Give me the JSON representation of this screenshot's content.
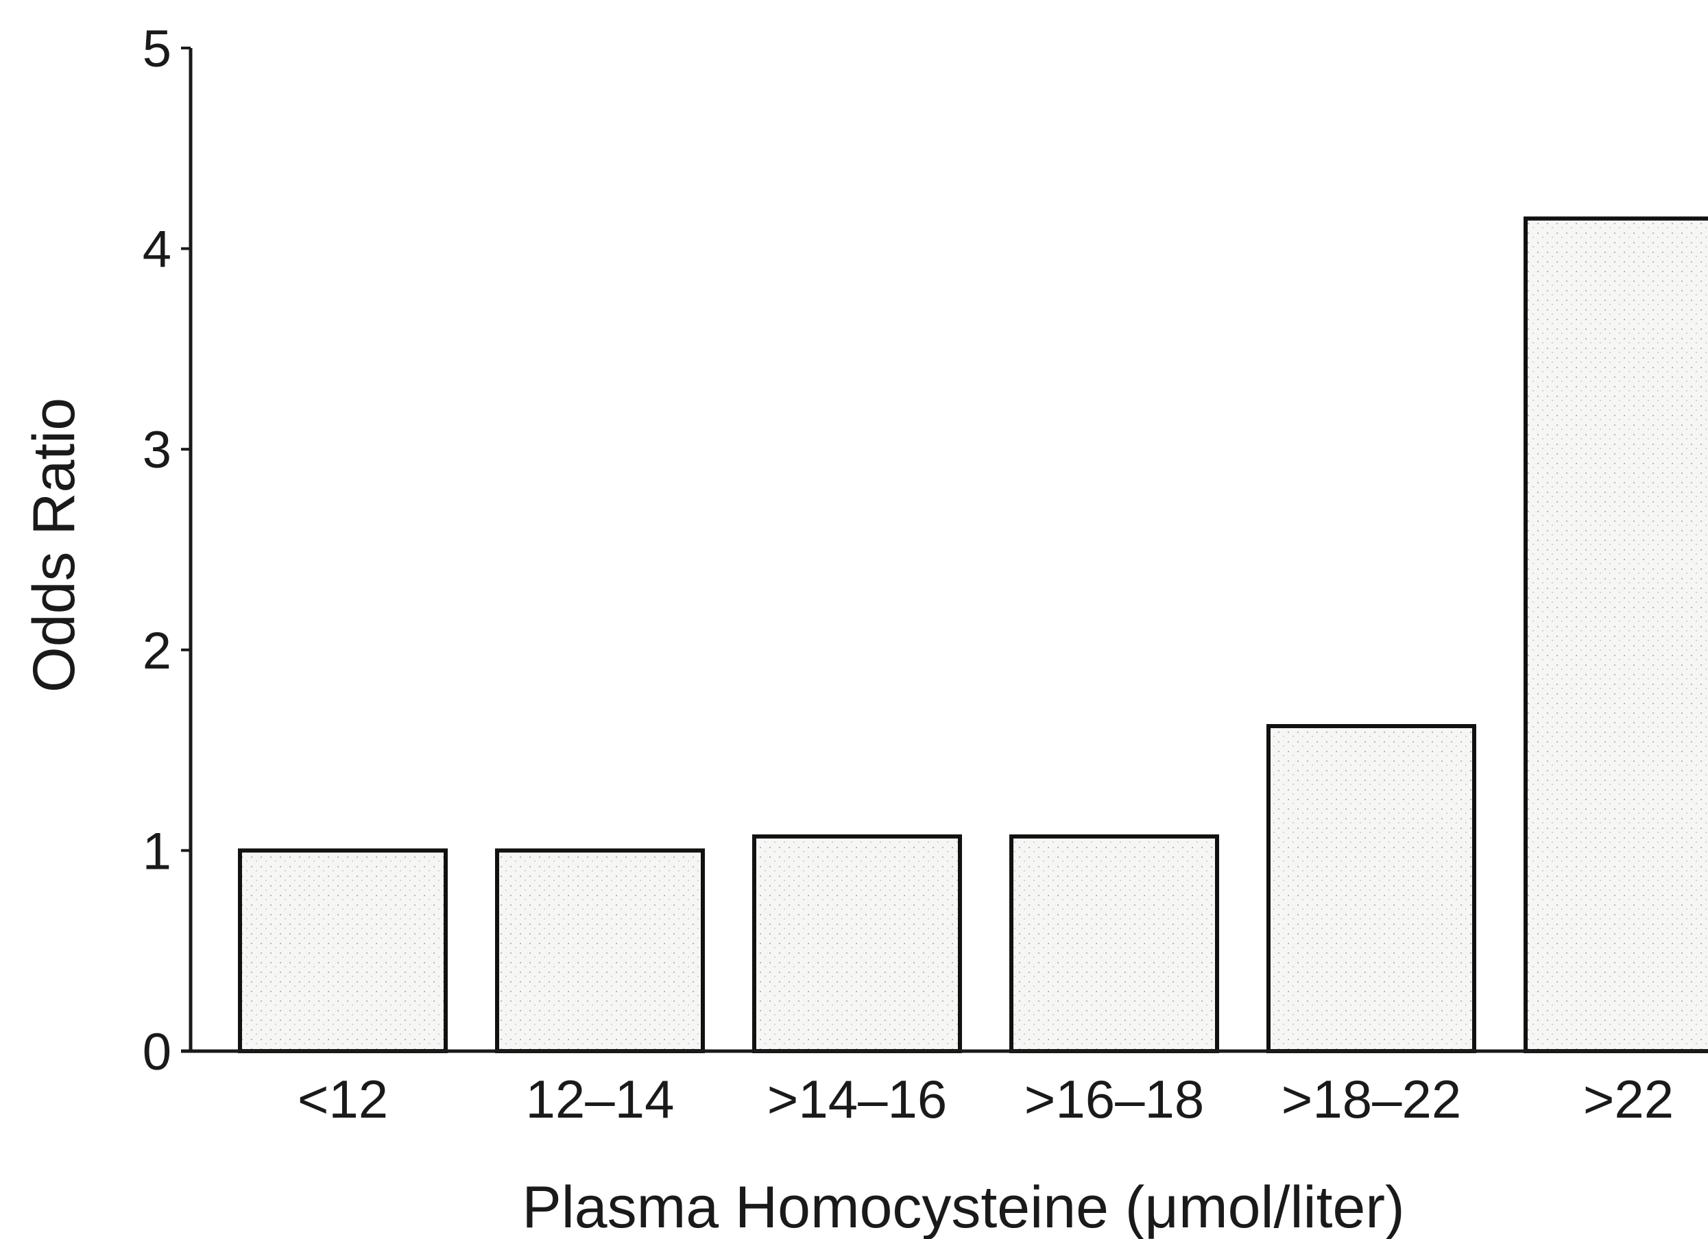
{
  "chart_data": {
    "type": "bar",
    "title": "",
    "xlabel": "Plasma Homocysteine (μmol/liter)",
    "ylabel": "Odds Ratio",
    "categories": [
      "<12",
      "12–14",
      ">14–16",
      ">16–18",
      ">18–22",
      ">22"
    ],
    "values": [
      1.0,
      1.0,
      1.07,
      1.07,
      1.62,
      4.15
    ],
    "ylim": [
      0,
      5
    ],
    "yticks": [
      "0",
      "1",
      "2",
      "3",
      "4",
      "5"
    ],
    "grid": false,
    "legend": "none",
    "colors": {
      "bar_fill": "#f4f4f2",
      "bar_stroke": "#111111",
      "axis": "#1a1a1a"
    }
  }
}
